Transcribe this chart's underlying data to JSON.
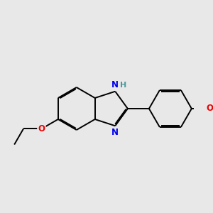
{
  "background_color": "#e8e8e8",
  "bond_color": "#000000",
  "n_color": "#0000ee",
  "o_color": "#ee0000",
  "h_color": "#4a9a9a",
  "font_size": 8.5,
  "line_width": 1.4,
  "dbo": 0.05,
  "bl": 1.0,
  "xlim": [
    -3.5,
    5.5
  ],
  "ylim": [
    -2.8,
    3.0
  ]
}
